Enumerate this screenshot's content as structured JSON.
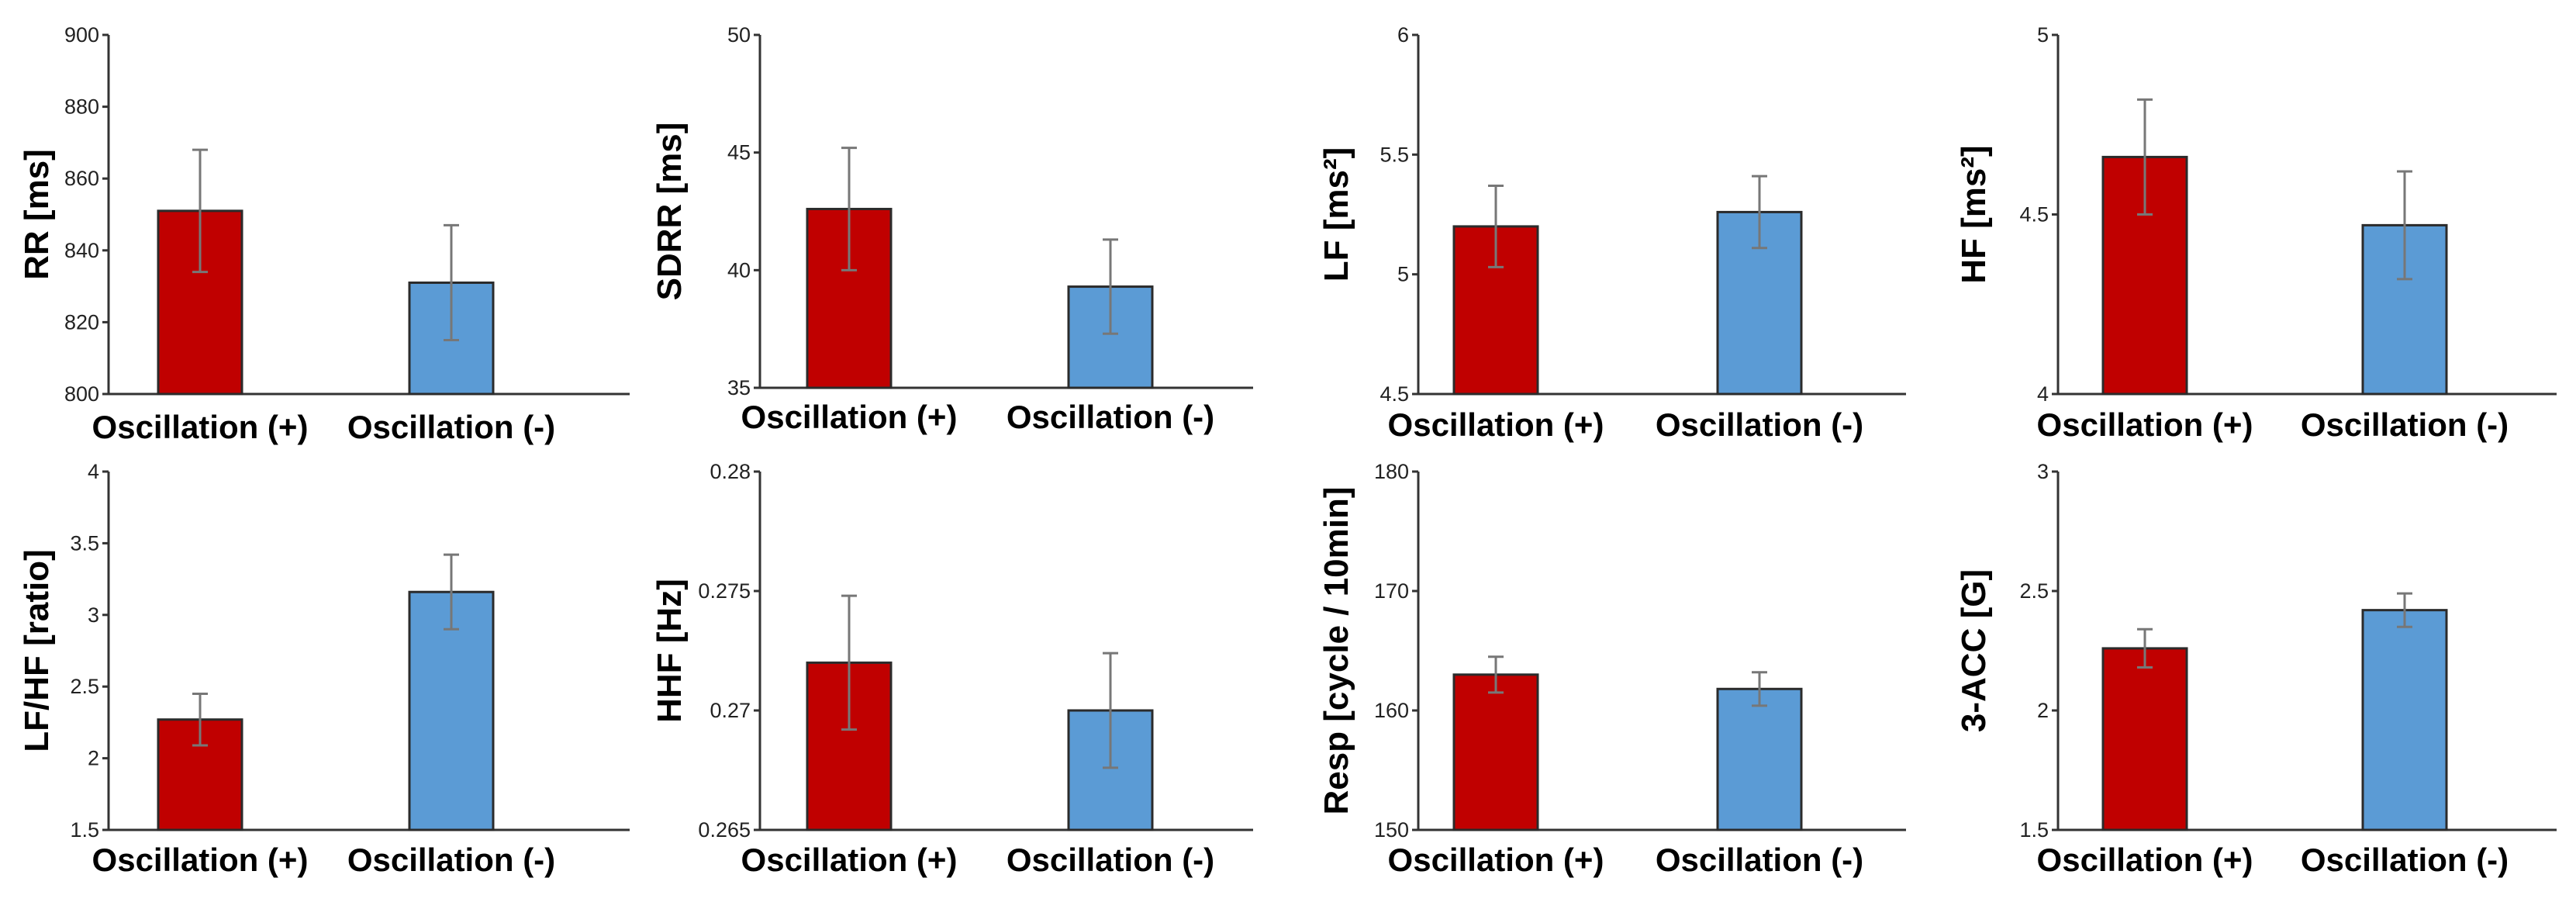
{
  "colors": {
    "oscillation_plus": "#C00000",
    "oscillation_minus": "#5B9BD5"
  },
  "chart_data": [
    {
      "type": "bar",
      "ylabel": "RR [ms]",
      "categories": [
        "Oscillation (+)",
        "Oscillation (-)"
      ],
      "values": [
        851,
        831
      ],
      "errors": [
        17,
        16
      ],
      "ylim": [
        800,
        900
      ],
      "yticks": [
        "800",
        "820",
        "840",
        "860",
        "880",
        "900"
      ]
    },
    {
      "type": "bar",
      "ylabel": "SDRR [ms]",
      "categories": [
        "Oscillation (+)",
        "Oscillation (-)"
      ],
      "values": [
        42.6,
        39.3
      ],
      "errors": [
        2.6,
        2.0
      ],
      "ylim": [
        35,
        50
      ],
      "yticks": [
        "35",
        "40",
        "45",
        "50"
      ]
    },
    {
      "type": "bar",
      "ylabel": "LF [ms²]",
      "categories": [
        "Oscillation (+)",
        "Oscillation (-)"
      ],
      "values": [
        5.2,
        5.26
      ],
      "errors": [
        0.17,
        0.15
      ],
      "ylim": [
        4.5,
        6
      ],
      "yticks": [
        "4.5",
        "5",
        "5.5",
        "6"
      ]
    },
    {
      "type": "bar",
      "ylabel": "HF [ms²]",
      "categories": [
        "Oscillation (+)",
        "Oscillation (-)"
      ],
      "values": [
        4.66,
        4.47
      ],
      "errors": [
        0.16,
        0.15
      ],
      "ylim": [
        4,
        5
      ],
      "yticks": [
        "4",
        "4.5",
        "5"
      ]
    },
    {
      "type": "bar",
      "ylabel": "LF/HF [ratio]",
      "categories": [
        "Oscillation (+)",
        "Oscillation (-)"
      ],
      "values": [
        2.27,
        3.16
      ],
      "errors": [
        0.18,
        0.26
      ],
      "ylim": [
        1.5,
        4
      ],
      "yticks": [
        "1.5",
        "2",
        "2.5",
        "3",
        "3.5",
        "4"
      ]
    },
    {
      "type": "bar",
      "ylabel": "HHF [Hz]",
      "categories": [
        "Oscillation (+)",
        "Oscillation (-)"
      ],
      "values": [
        0.272,
        0.27
      ],
      "errors": [
        0.0028,
        0.0024
      ],
      "ylim": [
        0.265,
        0.28
      ],
      "yticks": [
        "0.265",
        "0.27",
        "0.275",
        "0.28"
      ]
    },
    {
      "type": "bar",
      "ylabel": "Resp [cycle / 10min]",
      "categories": [
        "Oscillation (+)",
        "Oscillation (-)"
      ],
      "values": [
        163,
        161.8
      ],
      "errors": [
        1.5,
        1.4
      ],
      "ylim": [
        150,
        180
      ],
      "yticks": [
        "150",
        "160",
        "170",
        "180"
      ]
    },
    {
      "type": "bar",
      "ylabel": "3-ACC [G]",
      "categories": [
        "Oscillation (+)",
        "Oscillation (-)"
      ],
      "values": [
        2.26,
        2.42
      ],
      "errors": [
        0.08,
        0.07
      ],
      "ylim": [
        1.5,
        3
      ],
      "yticks": [
        "1.5",
        "2",
        "2.5",
        "3"
      ]
    }
  ]
}
